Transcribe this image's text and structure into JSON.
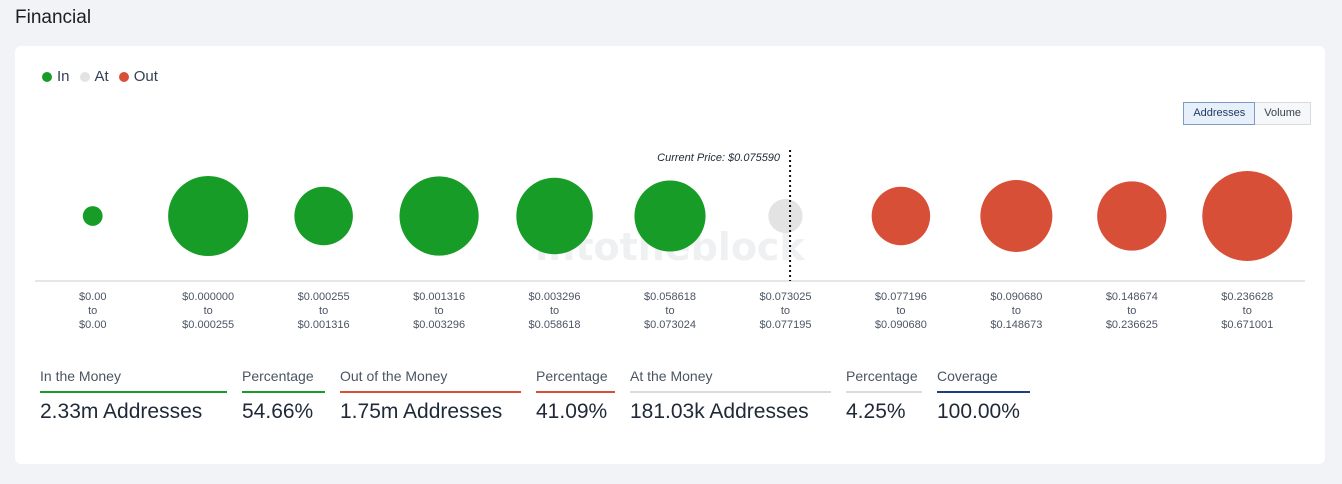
{
  "page": {
    "title": "Financial"
  },
  "legend": [
    {
      "label": "In",
      "color": "#179d27"
    },
    {
      "label": "At",
      "color": "#e3e3e3"
    },
    {
      "label": "Out",
      "color": "#d84f38"
    }
  ],
  "toggle": {
    "addresses_label": "Addresses",
    "volume_label": "Volume",
    "active": "Addresses"
  },
  "watermark": "intotheblock",
  "chart_data": {
    "type": "bubble",
    "title": "",
    "metric": "Addresses",
    "current_price_label": "Current Price: $0.075590",
    "current_price": 0.07559,
    "categories": [
      {
        "from": "$0.00",
        "to": "$0.00",
        "status": "in",
        "relative_size": 0.22
      },
      {
        "from": "$0.000000",
        "to": "$0.000255",
        "status": "in",
        "relative_size": 0.89
      },
      {
        "from": "$0.000255",
        "to": "$0.001316",
        "status": "in",
        "relative_size": 0.65
      },
      {
        "from": "$0.001316",
        "to": "$0.003296",
        "status": "in",
        "relative_size": 0.88
      },
      {
        "from": "$0.003296",
        "to": "$0.058618",
        "status": "in",
        "relative_size": 0.85
      },
      {
        "from": "$0.058618",
        "to": "$0.073024",
        "status": "in",
        "relative_size": 0.79
      },
      {
        "from": "$0.073025",
        "to": "$0.077195",
        "status": "at",
        "relative_size": 0.38
      },
      {
        "from": "$0.077196",
        "to": "$0.090680",
        "status": "out",
        "relative_size": 0.65
      },
      {
        "from": "$0.090680",
        "to": "$0.148673",
        "status": "out",
        "relative_size": 0.8
      },
      {
        "from": "$0.148674",
        "to": "$0.236625",
        "status": "out",
        "relative_size": 0.77
      },
      {
        "from": "$0.236628",
        "to": "$0.671001",
        "status": "out",
        "relative_size": 1.0
      }
    ],
    "range_connector": "to",
    "colors": {
      "in": "#179d27",
      "at": "#e3e3e3",
      "out": "#d84f38"
    }
  },
  "stats": [
    {
      "label": "In the Money",
      "value": "2.33m Addresses",
      "color": "#179d27"
    },
    {
      "label": "Percentage",
      "value": "54.66%",
      "color": "#179d27"
    },
    {
      "label": "Out of the Money",
      "value": "1.75m Addresses",
      "color": "#d84f38"
    },
    {
      "label": "Percentage",
      "value": "41.09%",
      "color": "#d84f38"
    },
    {
      "label": "At the Money",
      "value": "181.03k Addresses",
      "color": "#d9dbde"
    },
    {
      "label": "Percentage",
      "value": "4.25%",
      "color": "#d9dbde"
    },
    {
      "label": "Coverage",
      "value": "100.00%",
      "color": "#1e3f80"
    }
  ]
}
